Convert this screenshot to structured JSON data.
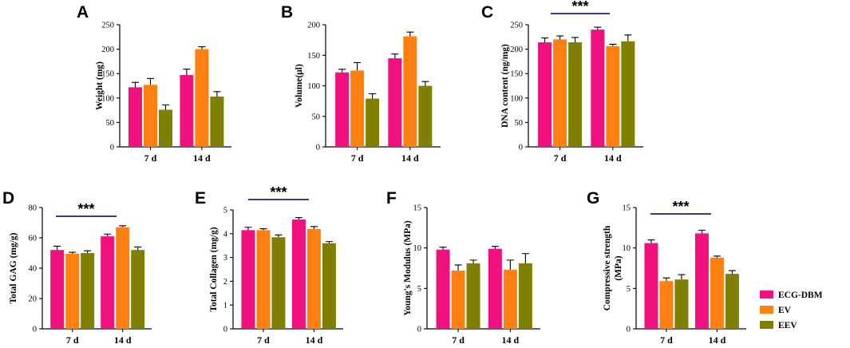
{
  "chart_data": [
    {
      "panel": "A",
      "type": "bar",
      "ylabel": "Weight (mg)",
      "ylim": [
        0,
        250
      ],
      "yticks": [
        "0",
        "50",
        "100",
        "150",
        "200",
        "250"
      ],
      "tick_values": [
        0,
        50,
        100,
        150,
        200,
        250
      ],
      "categories": [
        "7 d",
        "14 d"
      ],
      "series": [
        {
          "name": "ECG-DBM",
          "values": [
            122,
            147
          ],
          "errors": [
            10,
            12
          ]
        },
        {
          "name": "EV",
          "values": [
            127,
            200
          ],
          "errors": [
            13,
            5
          ]
        },
        {
          "name": "EEV",
          "values": [
            76,
            103
          ],
          "errors": [
            10,
            10
          ]
        }
      ],
      "significance": null
    },
    {
      "panel": "B",
      "type": "bar",
      "ylabel": "Volume(μl)",
      "ylim": [
        0,
        200
      ],
      "yticks": [
        "0",
        "50",
        "100",
        "150",
        "200"
      ],
      "tick_values": [
        0,
        50,
        100,
        150,
        200
      ],
      "categories": [
        "7 d",
        "14 d"
      ],
      "series": [
        {
          "name": "ECG-DBM",
          "values": [
            122,
            145
          ],
          "errors": [
            5,
            7
          ]
        },
        {
          "name": "EV",
          "values": [
            125,
            181
          ],
          "errors": [
            13,
            7
          ]
        },
        {
          "name": "EEV",
          "values": [
            79,
            100
          ],
          "errors": [
            8,
            7
          ]
        }
      ],
      "significance": null
    },
    {
      "panel": "C",
      "type": "bar",
      "ylabel": "DNA content (ng/mg)",
      "ylim": [
        0,
        250
      ],
      "yticks": [
        "0",
        "50",
        "100",
        "150",
        "200",
        "250"
      ],
      "tick_values": [
        0,
        50,
        100,
        150,
        200,
        250
      ],
      "categories": [
        "7 d",
        "14 d"
      ],
      "series": [
        {
          "name": "ECG-DBM",
          "values": [
            214,
            240
          ],
          "errors": [
            9,
            5
          ]
        },
        {
          "name": "EV",
          "values": [
            220,
            206
          ],
          "errors": [
            7,
            4
          ]
        },
        {
          "name": "EEV",
          "values": [
            214,
            216
          ],
          "errors": [
            10,
            13
          ]
        }
      ],
      "significance": "***"
    },
    {
      "panel": "D",
      "type": "bar",
      "ylabel": "Total GAG (mg/g)",
      "ylim": [
        0,
        80
      ],
      "yticks": [
        "0",
        "20",
        "40",
        "60",
        "80"
      ],
      "tick_values": [
        0,
        20,
        40,
        60,
        80
      ],
      "categories": [
        "7 d",
        "14 d"
      ],
      "series": [
        {
          "name": "ECG-DBM",
          "values": [
            52,
            61
          ],
          "errors": [
            2.5,
            1.5
          ]
        },
        {
          "name": "EV",
          "values": [
            49.5,
            67
          ],
          "errors": [
            1,
            1
          ]
        },
        {
          "name": "EEV",
          "values": [
            50,
            52
          ],
          "errors": [
            1.5,
            2
          ]
        }
      ],
      "significance": "***"
    },
    {
      "panel": "E",
      "type": "bar",
      "ylabel": "Total Collagen (mg/g)",
      "ylim": [
        0,
        5
      ],
      "yticks": [
        "0",
        "1",
        "2",
        "3",
        "4",
        "5"
      ],
      "tick_values": [
        0,
        1,
        2,
        3,
        4,
        5
      ],
      "categories": [
        "7 d",
        "14 d"
      ],
      "series": [
        {
          "name": "ECG-DBM",
          "values": [
            4.15,
            4.6
          ],
          "errors": [
            0.12,
            0.08
          ]
        },
        {
          "name": "EV",
          "values": [
            4.15,
            4.2
          ],
          "errors": [
            0.06,
            0.1
          ]
        },
        {
          "name": "EEV",
          "values": [
            3.85,
            3.6
          ],
          "errors": [
            0.1,
            0.07
          ]
        }
      ],
      "significance": "***"
    },
    {
      "panel": "F",
      "type": "bar",
      "ylabel": "Young's Modulus (MPa)",
      "ylim": [
        0,
        15
      ],
      "yticks": [
        "0",
        "5",
        "10",
        "15"
      ],
      "tick_values": [
        0,
        5,
        10,
        15
      ],
      "categories": [
        "7 d",
        "14 d"
      ],
      "series": [
        {
          "name": "ECG-DBM",
          "values": [
            9.8,
            9.9
          ],
          "errors": [
            0.3,
            0.3
          ]
        },
        {
          "name": "EV",
          "values": [
            7.2,
            7.3
          ],
          "errors": [
            0.7,
            1.2
          ]
        },
        {
          "name": "EEV",
          "values": [
            8.1,
            8.1
          ],
          "errors": [
            0.4,
            1.2
          ]
        }
      ],
      "significance": null
    },
    {
      "panel": "G",
      "type": "bar",
      "ylabel": "Compressive strength (MPa)",
      "ylabel_lines": [
        "Compressive strength",
        "(MPa)"
      ],
      "ylim": [
        0,
        15
      ],
      "yticks": [
        "0",
        "5",
        "10",
        "15"
      ],
      "tick_values": [
        0,
        5,
        10,
        15
      ],
      "categories": [
        "7 d",
        "14 d"
      ],
      "series": [
        {
          "name": "ECG-DBM",
          "values": [
            10.6,
            11.8
          ],
          "errors": [
            0.4,
            0.4
          ]
        },
        {
          "name": "EV",
          "values": [
            5.9,
            8.8
          ],
          "errors": [
            0.4,
            0.2
          ]
        },
        {
          "name": "EEV",
          "values": [
            6.1,
            6.8
          ],
          "errors": [
            0.6,
            0.4
          ]
        }
      ],
      "significance": "***"
    }
  ],
  "legend": {
    "placement": "right",
    "items": [
      {
        "label": "ECG-DBM",
        "color": "#f0117f"
      },
      {
        "label": "EV",
        "color": "#ff8010"
      },
      {
        "label": "EEV",
        "color": "#7f7f00"
      }
    ]
  }
}
